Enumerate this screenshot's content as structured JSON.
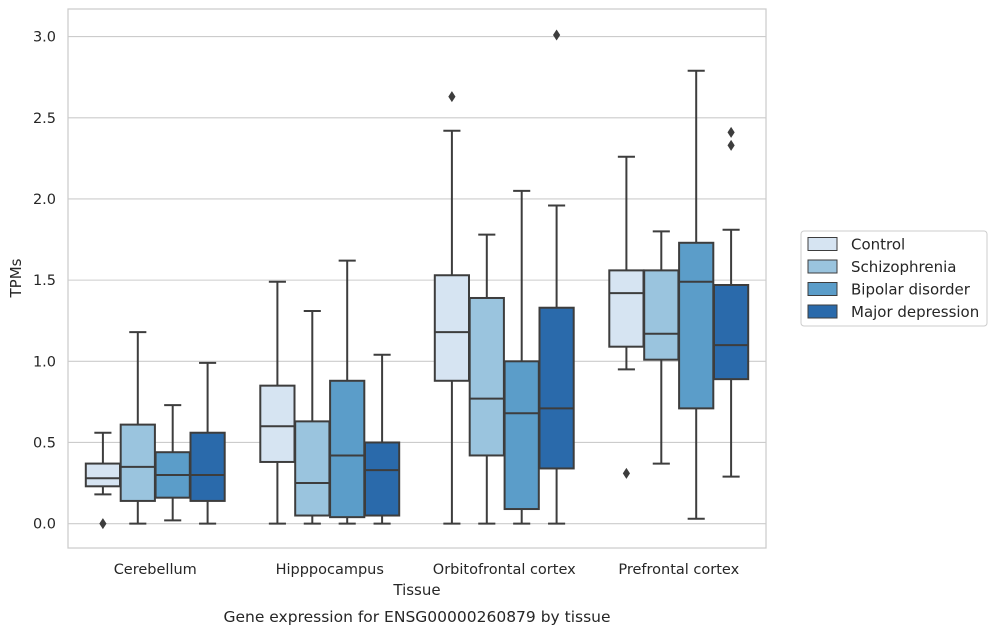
{
  "chart_data": {
    "type": "box",
    "xlabel": "Tissue",
    "ylabel": "TPMs",
    "caption": "Gene expression for ENSG00000260879 by tissue",
    "ylim": [
      -0.15,
      3.17
    ],
    "yticks": [
      0.0,
      0.5,
      1.0,
      1.5,
      2.0,
      2.5,
      3.0
    ],
    "ytick_labels": [
      "0.0",
      "0.5",
      "1.0",
      "1.5",
      "2.0",
      "2.5",
      "3.0"
    ],
    "grid": "horizontal",
    "legend_position": "right",
    "categories": [
      "Cerebellum",
      "Hipppocampus",
      "Orbitofrontal cortex",
      "Prefrontal cortex"
    ],
    "series": [
      {
        "name": "Control",
        "color": "#d6e4f2",
        "boxes": [
          {
            "whislo": 0.18,
            "q1": 0.23,
            "med": 0.28,
            "q3": 0.37,
            "whishi": 0.56,
            "fliers": [
              0.0
            ]
          },
          {
            "whislo": 0.0,
            "q1": 0.38,
            "med": 0.6,
            "q3": 0.85,
            "whishi": 1.49,
            "fliers": []
          },
          {
            "whislo": 0.0,
            "q1": 0.88,
            "med": 1.18,
            "q3": 1.53,
            "whishi": 2.42,
            "fliers": [
              2.63
            ]
          },
          {
            "whislo": 0.95,
            "q1": 1.09,
            "med": 1.42,
            "q3": 1.56,
            "whishi": 2.26,
            "fliers": [
              0.31
            ]
          }
        ]
      },
      {
        "name": "Schizophrenia",
        "color": "#9ac4de",
        "boxes": [
          {
            "whislo": 0.0,
            "q1": 0.14,
            "med": 0.35,
            "q3": 0.61,
            "whishi": 1.18,
            "fliers": []
          },
          {
            "whislo": 0.0,
            "q1": 0.05,
            "med": 0.25,
            "q3": 0.63,
            "whishi": 1.31,
            "fliers": []
          },
          {
            "whislo": 0.0,
            "q1": 0.42,
            "med": 0.77,
            "q3": 1.39,
            "whishi": 1.78,
            "fliers": []
          },
          {
            "whislo": 0.37,
            "q1": 1.01,
            "med": 1.17,
            "q3": 1.56,
            "whishi": 1.8,
            "fliers": []
          }
        ]
      },
      {
        "name": "Bipolar disorder",
        "color": "#5b9dc9",
        "boxes": [
          {
            "whislo": 0.02,
            "q1": 0.16,
            "med": 0.3,
            "q3": 0.44,
            "whishi": 0.73,
            "fliers": []
          },
          {
            "whislo": 0.0,
            "q1": 0.04,
            "med": 0.42,
            "q3": 0.88,
            "whishi": 1.62,
            "fliers": []
          },
          {
            "whislo": 0.0,
            "q1": 0.09,
            "med": 0.68,
            "q3": 1.0,
            "whishi": 2.05,
            "fliers": []
          },
          {
            "whislo": 0.03,
            "q1": 0.71,
            "med": 1.49,
            "q3": 1.73,
            "whishi": 2.79,
            "fliers": []
          }
        ]
      },
      {
        "name": "Major depression",
        "color": "#2a6aab",
        "boxes": [
          {
            "whislo": 0.0,
            "q1": 0.14,
            "med": 0.3,
            "q3": 0.56,
            "whishi": 0.99,
            "fliers": []
          },
          {
            "whislo": 0.0,
            "q1": 0.05,
            "med": 0.33,
            "q3": 0.5,
            "whishi": 1.04,
            "fliers": []
          },
          {
            "whislo": 0.0,
            "q1": 0.34,
            "med": 0.71,
            "q3": 1.33,
            "whishi": 1.96,
            "fliers": [
              3.01
            ]
          },
          {
            "whislo": 0.29,
            "q1": 0.89,
            "med": 1.1,
            "q3": 1.47,
            "whishi": 1.81,
            "fliers": [
              2.33,
              2.41
            ]
          }
        ]
      }
    ]
  }
}
